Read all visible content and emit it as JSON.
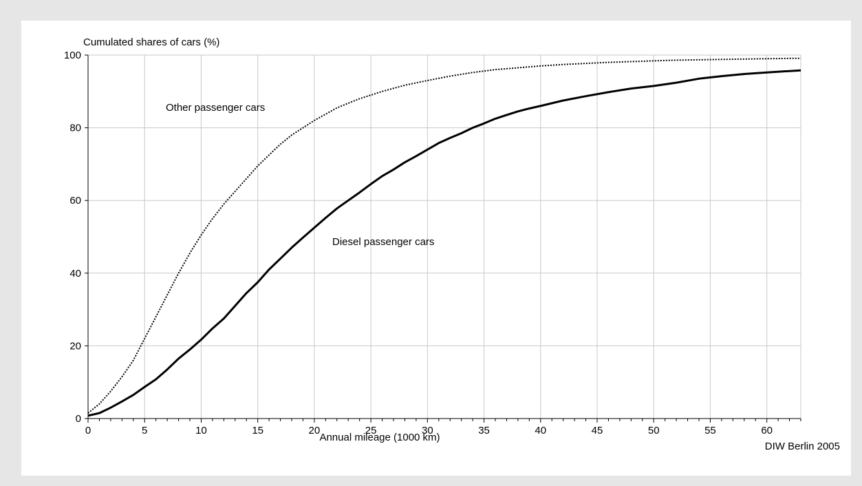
{
  "chart_data": {
    "type": "line",
    "ylabel": "Cumulated shares of cars (%)",
    "xlabel": "Annual mileage (1000 km)",
    "source": "DIW Berlin 2005",
    "xlim": [
      0,
      63
    ],
    "ylim": [
      0,
      100
    ],
    "xticks": [
      0,
      5,
      10,
      15,
      20,
      25,
      30,
      35,
      40,
      45,
      50,
      55,
      60
    ],
    "yticks": [
      0,
      20,
      40,
      60,
      80,
      100
    ],
    "grid": true,
    "series": [
      {
        "name": "Other passenger cars",
        "style": "dotted",
        "color": "#000000",
        "x": [
          0,
          1,
          2,
          3,
          4,
          5,
          6,
          7,
          8,
          9,
          10,
          11,
          12,
          13,
          14,
          15,
          16,
          17,
          18,
          19,
          20,
          22,
          24,
          26,
          28,
          30,
          32,
          34,
          36,
          38,
          40,
          42,
          44,
          46,
          48,
          50,
          52,
          54,
          56,
          58,
          60,
          62,
          63
        ],
        "y": [
          1.5,
          4,
          7.5,
          11.5,
          16,
          22,
          28,
          34,
          40,
          45.5,
          50.5,
          55,
          59,
          62.5,
          66,
          69.5,
          72.5,
          75.5,
          78,
          80,
          82,
          85.5,
          88,
          90,
          91.7,
          93,
          94.2,
          95.2,
          96,
          96.5,
          97,
          97.4,
          97.7,
          98,
          98.2,
          98.4,
          98.6,
          98.7,
          98.8,
          98.9,
          99,
          99.1,
          99.1
        ]
      },
      {
        "name": "Diesel passenger cars",
        "style": "solid",
        "color": "#000000",
        "x": [
          0,
          1,
          2,
          3,
          4,
          5,
          6,
          7,
          8,
          9,
          10,
          11,
          12,
          13,
          14,
          15,
          16,
          17,
          18,
          19,
          20,
          21,
          22,
          23,
          24,
          25,
          26,
          27,
          28,
          29,
          30,
          31,
          32,
          33,
          34,
          35,
          36,
          37,
          38,
          39,
          40,
          42,
          44,
          46,
          48,
          50,
          52,
          54,
          56,
          58,
          60,
          62,
          63
        ],
        "y": [
          0.8,
          1.5,
          3,
          4.7,
          6.5,
          8.7,
          10.8,
          13.5,
          16.5,
          19,
          21.7,
          24.8,
          27.5,
          31,
          34.5,
          37.5,
          41,
          44,
          47,
          49.8,
          52.5,
          55.2,
          57.8,
          60,
          62.2,
          64.5,
          66.7,
          68.5,
          70.5,
          72.2,
          74,
          75.8,
          77.2,
          78.5,
          80,
          81.2,
          82.5,
          83.5,
          84.5,
          85.3,
          86,
          87.5,
          88.7,
          89.8,
          90.8,
          91.5,
          92.4,
          93.5,
          94.2,
          94.8,
          95.2,
          95.6,
          95.8
        ]
      }
    ]
  }
}
